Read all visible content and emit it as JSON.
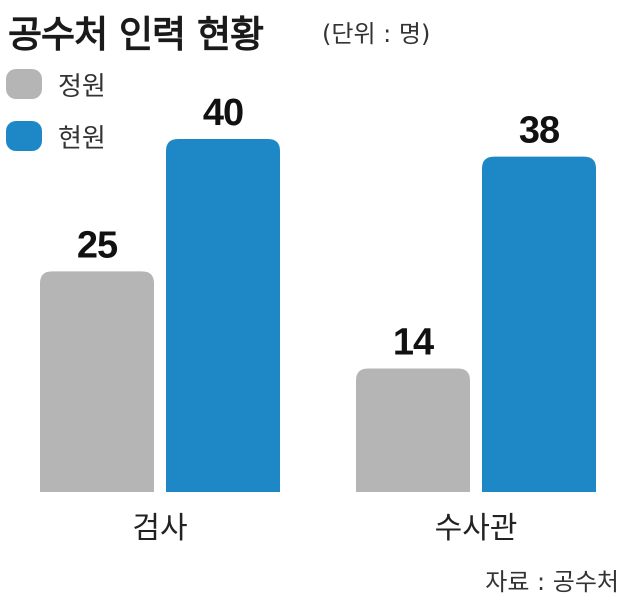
{
  "title": "공수처 인력 현황",
  "unit": "(단위 : 명)",
  "source": "자료 : 공수처",
  "legend": [
    {
      "label": "정원",
      "color": "#b5b5b5"
    },
    {
      "label": "현원",
      "color": "#1e88c6"
    }
  ],
  "chart_data": {
    "type": "bar",
    "categories": [
      "검사",
      "수사관"
    ],
    "series": [
      {
        "name": "정원",
        "values": [
          25,
          14
        ]
      },
      {
        "name": "현원",
        "values": [
          40,
          38
        ]
      }
    ],
    "colors": [
      "#b5b5b5",
      "#1e88c6"
    ],
    "ylim": [
      0,
      40
    ],
    "grid": false,
    "legend_position": "top-left"
  }
}
